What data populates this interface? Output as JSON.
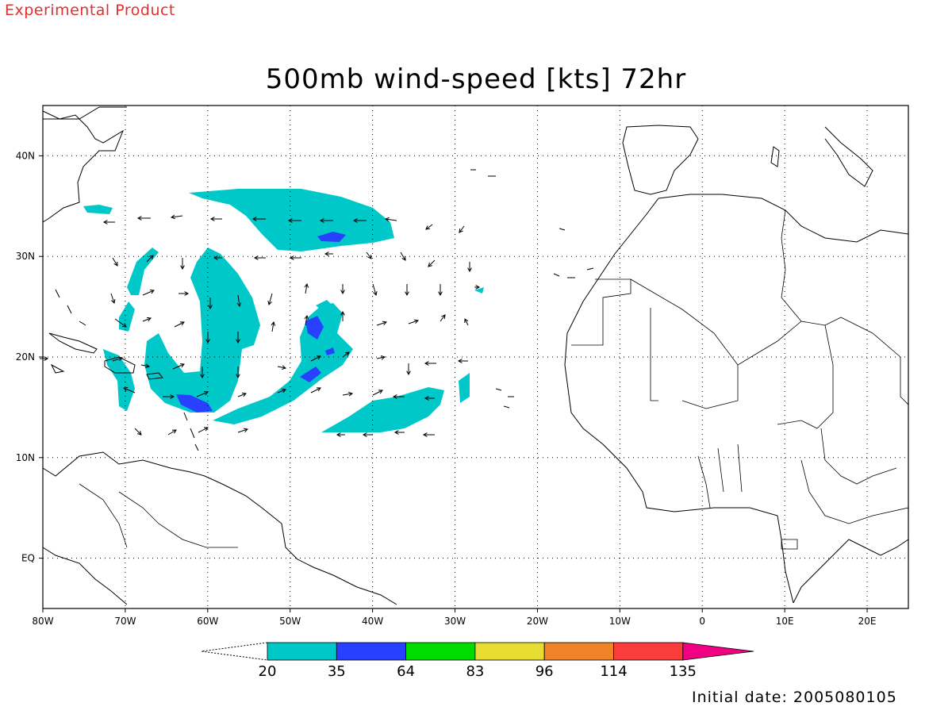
{
  "header": {
    "experimental_label": "Experimental Product",
    "title": "500mb wind-speed [kts] 72hr",
    "initial_date": "Initial date: 2005080105"
  },
  "map": {
    "lon_range": [
      -80,
      25
    ],
    "lat_range": [
      -5,
      45
    ],
    "lon_ticks": [
      {
        "value": -80,
        "label": "80W"
      },
      {
        "value": -70,
        "label": "70W"
      },
      {
        "value": -60,
        "label": "60W"
      },
      {
        "value": -50,
        "label": "50W"
      },
      {
        "value": -40,
        "label": "40W"
      },
      {
        "value": -30,
        "label": "30W"
      },
      {
        "value": -20,
        "label": "20W"
      },
      {
        "value": -10,
        "label": "10W"
      },
      {
        "value": 0,
        "label": "0"
      },
      {
        "value": 10,
        "label": "10E"
      },
      {
        "value": 20,
        "label": "20E"
      }
    ],
    "lat_ticks": [
      {
        "value": 40,
        "label": "40N"
      },
      {
        "value": 30,
        "label": "30N"
      },
      {
        "value": 20,
        "label": "20N"
      },
      {
        "value": 10,
        "label": "10N"
      },
      {
        "value": 0,
        "label": "EQ"
      }
    ],
    "grid": "dotted"
  },
  "colorbar": {
    "levels": [
      "20",
      "35",
      "64",
      "83",
      "96",
      "114",
      "135"
    ],
    "colors": [
      "#00c8c8",
      "#2840ff",
      "#00dc00",
      "#e6dc32",
      "#f08228",
      "#fa3c3c",
      "#f00082"
    ]
  }
}
